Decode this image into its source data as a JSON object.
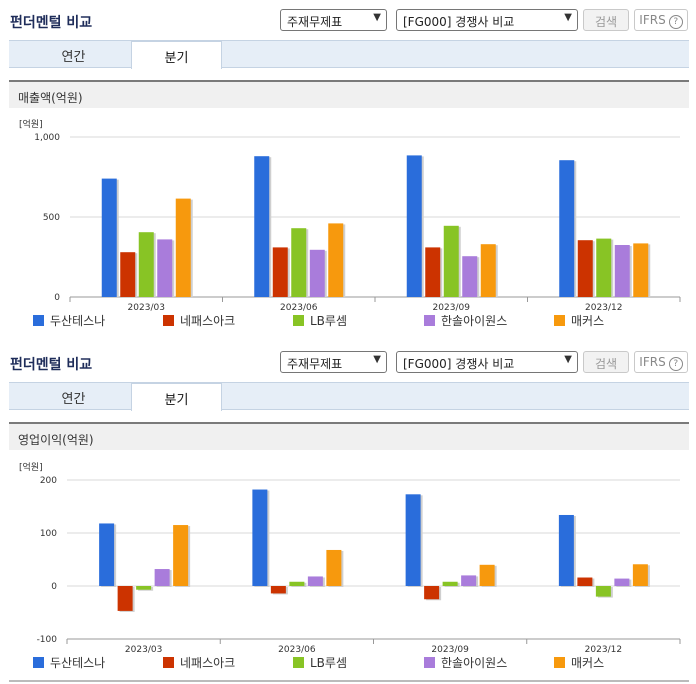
{
  "panels": [
    {
      "title": "펀더멘털 비교",
      "select1": "주재무제표",
      "select2": "[FG000] 경쟁사 비교",
      "search_label": "검색",
      "ifrs_label": "IFRS",
      "help_label": "?",
      "tabs": [
        "연간",
        "분기"
      ],
      "metric": "매출액(억원)"
    },
    {
      "title": "펀더멘털 비교",
      "select1": "주재무제표",
      "select2": "[FG000] 경쟁사 비교",
      "search_label": "검색",
      "ifrs_label": "IFRS",
      "help_label": "?",
      "tabs": [
        "연간",
        "분기"
      ],
      "metric": "영업이익(억원)"
    }
  ],
  "chart_data": [
    {
      "type": "bar",
      "unit_label": "[억원]",
      "categories": [
        "2023/03",
        "2023/06",
        "2023/09",
        "2023/12"
      ],
      "ylim": [
        0,
        1000
      ],
      "yticks": [
        0,
        500,
        1000
      ],
      "ytick_labels": [
        "0",
        "500",
        "1,000"
      ],
      "grid": true,
      "legend_position": "bottom",
      "series": [
        {
          "name": "두산테스나",
          "color": "#2a6ddb",
          "values": [
            740,
            880,
            885,
            855
          ]
        },
        {
          "name": "네패스아크",
          "color": "#cc3300",
          "values": [
            280,
            310,
            310,
            355
          ]
        },
        {
          "name": "LB루셈",
          "color": "#88c425",
          "values": [
            405,
            430,
            445,
            365
          ]
        },
        {
          "name": "한솔아이원스",
          "color": "#a97cdb",
          "values": [
            360,
            295,
            255,
            325
          ]
        },
        {
          "name": "매커스",
          "color": "#f7990d",
          "values": [
            615,
            460,
            330,
            335
          ]
        }
      ]
    },
    {
      "type": "bar",
      "unit_label": "[억원]",
      "categories": [
        "2023/03",
        "2023/06",
        "2023/09",
        "2023/12"
      ],
      "ylim": [
        -100,
        200
      ],
      "yticks": [
        -100,
        0,
        100,
        200
      ],
      "ytick_labels": [
        "-100",
        "0",
        "100",
        "200"
      ],
      "grid": true,
      "legend_position": "bottom",
      "series": [
        {
          "name": "두산테스나",
          "color": "#2a6ddb",
          "values": [
            118,
            182,
            173,
            134
          ]
        },
        {
          "name": "네패스아크",
          "color": "#cc3300",
          "values": [
            -47,
            -14,
            -25,
            16
          ]
        },
        {
          "name": "LB루셈",
          "color": "#88c425",
          "values": [
            -7,
            8,
            8,
            -20
          ]
        },
        {
          "name": "한솔아이원스",
          "color": "#a97cdb",
          "values": [
            32,
            18,
            20,
            14
          ]
        },
        {
          "name": "매커스",
          "color": "#f7990d",
          "values": [
            115,
            68,
            40,
            41
          ]
        }
      ]
    }
  ]
}
